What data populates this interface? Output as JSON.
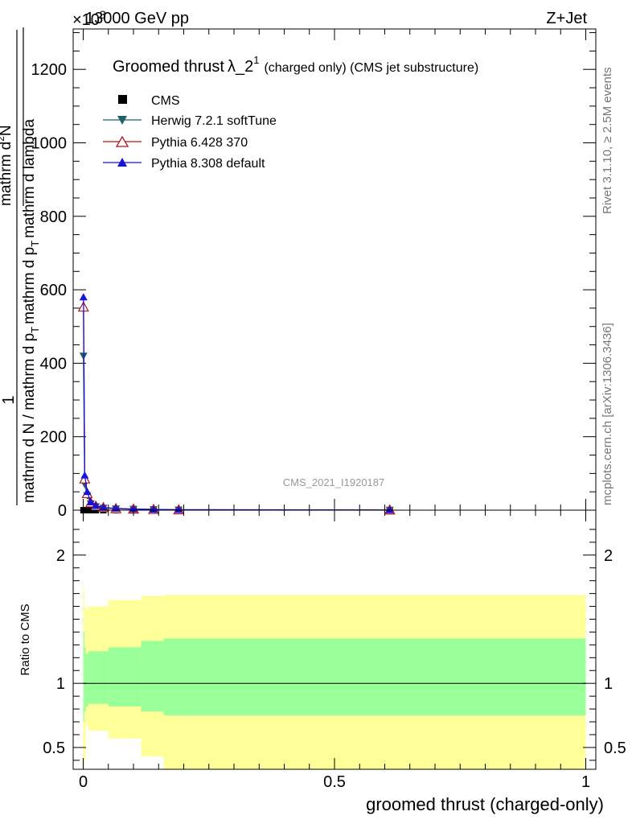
{
  "header": {
    "energy": "13000 GeV pp",
    "process": "Z+Jet",
    "exponent": "×10",
    "exponent_power": "3"
  },
  "side_text": {
    "rivet": "Rivet 3.1.10, ≥ 2.5M events",
    "mcplots": "mcplots.cern.ch [arXiv:1306.3436]"
  },
  "watermark": "CMS_2021_I1920187",
  "colors": {
    "cms": "#000000",
    "herwig": "#1f5f66",
    "pythia6": "#b0141e",
    "pythia8": "#1414dc",
    "band_inner": "#99ff99",
    "band_outer": "#ffff99"
  },
  "chart_data": [
    {
      "type": "line",
      "title_main": "Groomed thrust",
      "title_symbol": "λ_2",
      "title_sup": "1",
      "title_suffix": "(charged only) (CMS jet substructure)",
      "ylabel_parts": [
        "1",
        "mathrm d N / mathrm d p_T mathrm d p_T mathrm d lambda",
        "mathrm d^2N",
        "mathrm d p_T mathrm d lambda"
      ],
      "ylabel_num": "mathrm d",
      "ylabel_num2": "N",
      "ylabel_den": "mathrm d p",
      "ylabel_den_sub": "T",
      "ylabel_den2": "mathrm d lambda",
      "ylabel_left_num": "1",
      "ylabel_left_den": "mathrm d N / mathrm d p",
      "xlim": [
        -0.02,
        1.02
      ],
      "ylim": [
        0,
        1310
      ],
      "y_ticks": [
        0,
        200,
        400,
        600,
        800,
        1000,
        1200
      ],
      "y_tick_labels": [
        "0",
        "200",
        "400",
        "600",
        "800",
        "1000",
        "1200"
      ],
      "legend": [
        "CMS",
        "Herwig 7.2.1 softTune",
        "Pythia 6.428 370",
        "Pythia 8.308 default"
      ],
      "series": [
        {
          "name": "CMS",
          "marker": "square",
          "x": [
            0.0005,
            0.003,
            0.008,
            0.015,
            0.025,
            0.04,
            0.065,
            0.1,
            0.14,
            0.19,
            0.61
          ],
          "y": [
            0,
            0,
            0,
            0,
            0,
            0,
            0,
            0,
            0,
            0,
            0
          ]
        },
        {
          "name": "Herwig 7.2.1 softTune",
          "marker": "triangle-down",
          "x": [
            0.0005,
            0.003,
            0.008,
            0.015,
            0.025,
            0.04,
            0.065,
            0.1,
            0.14,
            0.19,
            0.61
          ],
          "y": [
            420,
            70,
            40,
            18,
            10,
            6,
            4,
            3,
            2,
            1,
            0.5
          ]
        },
        {
          "name": "Pythia 6.428 370",
          "marker": "triangle-open",
          "x": [
            0.0005,
            0.003,
            0.008,
            0.015,
            0.025,
            0.04,
            0.065,
            0.1,
            0.14,
            0.19,
            0.61
          ],
          "y": [
            553,
            85,
            45,
            20,
            11,
            7,
            4,
            3,
            2,
            1,
            0.5
          ]
        },
        {
          "name": "Pythia 8.308 default",
          "marker": "triangle-up",
          "x": [
            0.0005,
            0.003,
            0.008,
            0.015,
            0.025,
            0.04,
            0.065,
            0.1,
            0.14,
            0.19,
            0.61
          ],
          "y": [
            580,
            95,
            50,
            22,
            12,
            7,
            5,
            3,
            2,
            1,
            0.5
          ]
        }
      ]
    },
    {
      "type": "area",
      "ylabel": "Ratio to CMS",
      "xlabel": "groomed thrust (charged-only)",
      "xlim": [
        -0.02,
        1.02
      ],
      "ylim": [
        0.33,
        2.35
      ],
      "x_ticks": [
        0,
        0.5,
        1
      ],
      "x_tick_labels": [
        "0",
        "0.5",
        "1"
      ],
      "y_ticks": [
        0.5,
        1,
        2
      ],
      "y_tick_labels": [
        "0.5",
        "1",
        "2"
      ],
      "bins": [
        0.0,
        0.002,
        0.005,
        0.01,
        0.05,
        0.115,
        0.16,
        0.21,
        1.0
      ],
      "inner_band_low": [
        0.7,
        0.78,
        0.82,
        0.84,
        0.82,
        0.78,
        0.75,
        0.75
      ],
      "inner_band_high": [
        1.4,
        1.28,
        1.23,
        1.25,
        1.28,
        1.33,
        1.35,
        1.35
      ],
      "outer_band_low": [
        0.33,
        0.4,
        0.67,
        0.63,
        0.57,
        0.43,
        0.33,
        0.33
      ],
      "outer_band_high": [
        1.75,
        1.6,
        1.58,
        1.6,
        1.65,
        1.68,
        1.69,
        1.69
      ],
      "reference": 1
    }
  ]
}
